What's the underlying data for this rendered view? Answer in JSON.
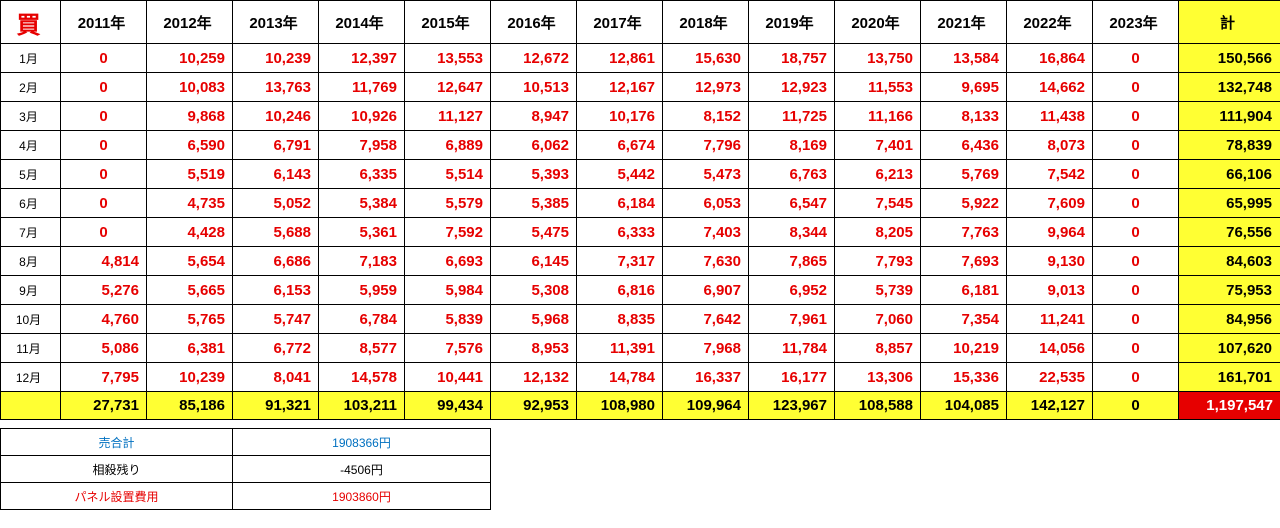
{
  "table": {
    "corner": "買",
    "years": [
      "2011年",
      "2012年",
      "2013年",
      "2014年",
      "2015年",
      "2016年",
      "2017年",
      "2018年",
      "2019年",
      "2020年",
      "2021年",
      "2022年",
      "2023年"
    ],
    "total_header": "計",
    "rows": [
      {
        "month": "1月",
        "values": [
          "0",
          "10,259",
          "10,239",
          "12,397",
          "13,553",
          "12,672",
          "12,861",
          "15,630",
          "18,757",
          "13,750",
          "13,584",
          "16,864",
          "0"
        ],
        "total": "150,566"
      },
      {
        "month": "2月",
        "values": [
          "0",
          "10,083",
          "13,763",
          "11,769",
          "12,647",
          "10,513",
          "12,167",
          "12,973",
          "12,923",
          "11,553",
          "9,695",
          "14,662",
          "0"
        ],
        "total": "132,748"
      },
      {
        "month": "3月",
        "values": [
          "0",
          "9,868",
          "10,246",
          "10,926",
          "11,127",
          "8,947",
          "10,176",
          "8,152",
          "11,725",
          "11,166",
          "8,133",
          "11,438",
          "0"
        ],
        "total": "111,904"
      },
      {
        "month": "4月",
        "values": [
          "0",
          "6,590",
          "6,791",
          "7,958",
          "6,889",
          "6,062",
          "6,674",
          "7,796",
          "8,169",
          "7,401",
          "6,436",
          "8,073",
          "0"
        ],
        "total": "78,839"
      },
      {
        "month": "5月",
        "values": [
          "0",
          "5,519",
          "6,143",
          "6,335",
          "5,514",
          "5,393",
          "5,442",
          "5,473",
          "6,763",
          "6,213",
          "5,769",
          "7,542",
          "0"
        ],
        "total": "66,106"
      },
      {
        "month": "6月",
        "values": [
          "0",
          "4,735",
          "5,052",
          "5,384",
          "5,579",
          "5,385",
          "6,184",
          "6,053",
          "6,547",
          "7,545",
          "5,922",
          "7,609",
          "0"
        ],
        "total": "65,995"
      },
      {
        "month": "7月",
        "values": [
          "0",
          "4,428",
          "5,688",
          "5,361",
          "7,592",
          "5,475",
          "6,333",
          "7,403",
          "8,344",
          "8,205",
          "7,763",
          "9,964",
          "0"
        ],
        "total": "76,556"
      },
      {
        "month": "8月",
        "values": [
          "4,814",
          "5,654",
          "6,686",
          "7,183",
          "6,693",
          "6,145",
          "7,317",
          "7,630",
          "7,865",
          "7,793",
          "7,693",
          "9,130",
          "0"
        ],
        "total": "84,603"
      },
      {
        "month": "9月",
        "values": [
          "5,276",
          "5,665",
          "6,153",
          "5,959",
          "5,984",
          "5,308",
          "6,816",
          "6,907",
          "6,952",
          "5,739",
          "6,181",
          "9,013",
          "0"
        ],
        "total": "75,953"
      },
      {
        "month": "10月",
        "values": [
          "4,760",
          "5,765",
          "5,747",
          "6,784",
          "5,839",
          "5,968",
          "8,835",
          "7,642",
          "7,961",
          "7,060",
          "7,354",
          "11,241",
          "0"
        ],
        "total": "84,956"
      },
      {
        "month": "11月",
        "values": [
          "5,086",
          "6,381",
          "6,772",
          "8,577",
          "7,576",
          "8,953",
          "11,391",
          "7,968",
          "11,784",
          "8,857",
          "10,219",
          "14,056",
          "0"
        ],
        "total": "107,620"
      },
      {
        "month": "12月",
        "values": [
          "7,795",
          "10,239",
          "8,041",
          "14,578",
          "10,441",
          "12,132",
          "14,784",
          "16,337",
          "16,177",
          "13,306",
          "15,336",
          "22,535",
          "0"
        ],
        "total": "161,701"
      }
    ],
    "year_totals": [
      "27,731",
      "85,186",
      "91,321",
      "103,211",
      "99,434",
      "92,953",
      "108,980",
      "109,964",
      "123,967",
      "108,588",
      "104,085",
      "142,127",
      "0"
    ],
    "grand_total": "1,197,547"
  },
  "summary": [
    {
      "label": "売合計",
      "value": "1908366円",
      "color": "#0070c0"
    },
    {
      "label": "相殺残り",
      "value": "-4506円",
      "color": "#000000"
    },
    {
      "label": "パネル設置費用",
      "value": "1903860円",
      "color": "#e60000"
    }
  ]
}
